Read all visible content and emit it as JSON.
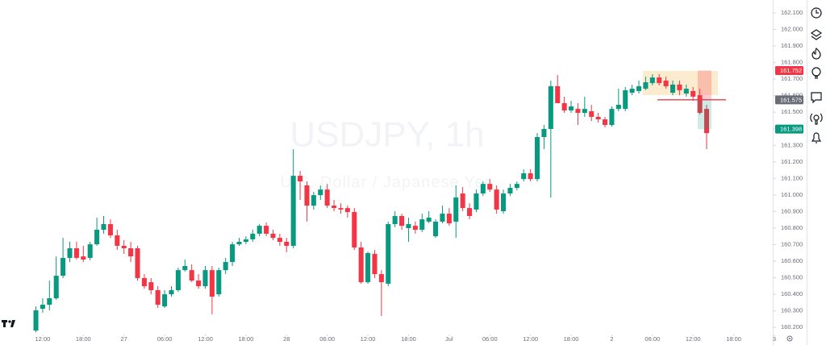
{
  "chart_data": {
    "type": "candlestick",
    "title": "USDJPY, 1h",
    "subtitle": "U.S. Dollar / Japanese Yen",
    "up_color": "#089981",
    "down_color": "#f23645",
    "x": [
      -1,
      0,
      1,
      2,
      3,
      4,
      5,
      6,
      7,
      8,
      9,
      10,
      11,
      12,
      13,
      14,
      15,
      16,
      17,
      18,
      19,
      20,
      21,
      22,
      23,
      24,
      25,
      26,
      27,
      28,
      29,
      30,
      31,
      32,
      33,
      34,
      35,
      36,
      37,
      38,
      39,
      40,
      41,
      42,
      43,
      44,
      45,
      46,
      47,
      48,
      49,
      50,
      51,
      52,
      53,
      54,
      55,
      56,
      57,
      58,
      59,
      60,
      61,
      62,
      63,
      64,
      65,
      66,
      67,
      68,
      69,
      70,
      71,
      72,
      73,
      74,
      75,
      76,
      77,
      78,
      79,
      80,
      81,
      82,
      83,
      84,
      85,
      86,
      87,
      88,
      89,
      90,
      91,
      92,
      93,
      94,
      95,
      96,
      97,
      98
    ],
    "open": [
      160.181,
      160.313,
      160.337,
      160.376,
      160.512,
      160.62,
      160.678,
      160.629,
      160.62,
      160.702,
      160.79,
      160.824,
      160.756,
      160.693,
      160.678,
      160.678,
      160.498,
      160.473,
      160.425,
      160.327,
      160.4,
      160.425,
      160.546,
      160.546,
      160.483,
      160.449,
      160.546,
      160.4,
      160.546,
      160.595,
      160.702,
      160.717,
      160.732,
      160.766,
      160.814,
      160.766,
      160.741,
      160.717,
      160.693,
      161.116,
      161.058,
      160.936,
      160.999,
      161.033,
      160.936,
      160.921,
      160.921,
      160.897,
      160.683,
      160.473,
      160.644,
      160.522,
      160.464,
      160.824,
      160.873,
      160.8,
      160.814,
      160.79,
      160.839,
      160.751,
      160.839,
      160.887,
      160.839,
      161.009,
      160.921,
      160.912,
      161.009,
      161.067,
      161.033,
      160.902,
      161.009,
      161.043,
      161.096,
      161.131,
      161.096,
      161.35,
      161.399,
      161.657,
      161.555,
      161.511,
      161.52,
      161.496,
      161.506,
      161.472,
      161.457,
      161.423,
      161.52,
      161.52,
      161.618,
      161.628,
      161.642,
      161.676,
      161.71,
      161.691,
      161.618,
      161.667,
      161.613,
      161.628,
      161.603,
      161.52
    ],
    "high": [
      160.327,
      160.376,
      160.483,
      160.629,
      160.741,
      160.717,
      160.717,
      160.693,
      160.717,
      160.863,
      160.873,
      160.853,
      160.79,
      160.727,
      160.717,
      160.693,
      160.522,
      160.498,
      160.449,
      160.425,
      160.449,
      160.561,
      160.61,
      160.58,
      160.522,
      160.571,
      160.571,
      160.561,
      160.62,
      160.717,
      160.741,
      160.751,
      160.79,
      160.824,
      160.834,
      160.79,
      160.766,
      160.741,
      161.277,
      161.145,
      161.082,
      161.019,
      161.058,
      161.067,
      160.97,
      160.95,
      160.936,
      160.921,
      160.717,
      160.658,
      160.668,
      160.546,
      160.839,
      160.902,
      160.887,
      160.863,
      160.839,
      160.887,
      160.902,
      160.853,
      160.936,
      160.921,
      161.058,
      161.048,
      160.95,
      161.033,
      161.082,
      161.096,
      161.058,
      161.033,
      161.067,
      161.082,
      161.155,
      161.155,
      161.374,
      161.423,
      161.691,
      161.725,
      161.594,
      161.569,
      161.555,
      161.594,
      161.545,
      161.496,
      161.472,
      161.535,
      161.642,
      161.652,
      161.667,
      161.691,
      161.715,
      161.73,
      161.73,
      161.715,
      161.691,
      161.691,
      161.667,
      161.652,
      161.642,
      161.545
    ],
    "low": [
      160.171,
      160.289,
      160.303,
      160.366,
      160.498,
      160.595,
      160.61,
      160.595,
      160.605,
      160.693,
      160.766,
      160.741,
      160.668,
      160.644,
      160.595,
      160.483,
      160.434,
      160.4,
      160.317,
      160.317,
      160.386,
      160.415,
      160.537,
      160.473,
      160.434,
      160.434,
      160.279,
      160.386,
      160.522,
      160.571,
      160.693,
      160.702,
      160.717,
      160.751,
      160.751,
      160.727,
      160.693,
      160.654,
      160.678,
      160.97,
      160.839,
      160.912,
      160.97,
      160.921,
      160.902,
      160.887,
      160.863,
      160.668,
      160.464,
      160.464,
      160.498,
      160.269,
      160.449,
      160.805,
      160.79,
      160.717,
      160.766,
      160.775,
      160.829,
      160.741,
      160.829,
      160.814,
      160.741,
      160.902,
      160.853,
      160.897,
      160.994,
      161.019,
      160.887,
      160.887,
      160.994,
      161.028,
      161.082,
      161.082,
      161.082,
      161.277,
      160.985,
      161.555,
      161.496,
      161.496,
      161.423,
      161.472,
      161.447,
      161.438,
      161.408,
      161.413,
      161.506,
      161.506,
      161.603,
      161.613,
      161.633,
      161.662,
      161.662,
      161.642,
      161.603,
      161.603,
      161.594,
      161.569,
      161.486,
      161.277
    ],
    "close": [
      160.303,
      160.337,
      160.376,
      160.512,
      160.62,
      160.678,
      160.62,
      160.61,
      160.702,
      160.79,
      160.824,
      160.756,
      160.693,
      160.678,
      160.629,
      160.498,
      160.449,
      160.425,
      160.337,
      160.4,
      160.425,
      160.546,
      160.571,
      160.483,
      160.449,
      160.546,
      160.386,
      160.546,
      160.595,
      160.702,
      160.717,
      160.732,
      160.766,
      160.814,
      160.766,
      160.741,
      160.717,
      160.693,
      161.116,
      161.082,
      160.936,
      160.999,
      161.033,
      160.936,
      160.921,
      160.912,
      160.897,
      160.683,
      160.473,
      160.649,
      160.522,
      160.473,
      160.824,
      160.873,
      160.814,
      160.824,
      160.79,
      160.853,
      160.863,
      160.839,
      160.887,
      160.829,
      160.985,
      160.921,
      160.873,
      161.009,
      161.067,
      161.033,
      160.912,
      161.009,
      161.043,
      161.067,
      161.131,
      161.096,
      161.35,
      161.399,
      161.657,
      161.555,
      161.511,
      161.535,
      161.496,
      161.52,
      161.472,
      161.457,
      161.423,
      161.52,
      161.545,
      161.633,
      161.642,
      161.657,
      161.681,
      161.71,
      161.676,
      161.657,
      161.667,
      161.633,
      161.642,
      161.594,
      161.496,
      161.374
    ],
    "xlim": [
      -6.3,
      108
    ],
    "xticks": [
      {
        "value": 0,
        "label": "12:00"
      },
      {
        "value": 6,
        "label": "18:00"
      },
      {
        "value": 12,
        "label": "27"
      },
      {
        "value": 18,
        "label": "06:00"
      },
      {
        "value": 24,
        "label": "12:00"
      },
      {
        "value": 30,
        "label": "18:00"
      },
      {
        "value": 36,
        "label": "28"
      },
      {
        "value": 42,
        "label": "06:00"
      },
      {
        "value": 48,
        "label": "12:00"
      },
      {
        "value": 54,
        "label": "18:00"
      },
      {
        "value": 60,
        "label": "Jul"
      },
      {
        "value": 66,
        "label": "06:00"
      },
      {
        "value": 72,
        "label": "12:00"
      },
      {
        "value": 78,
        "label": "18:00"
      },
      {
        "value": 84,
        "label": "2"
      },
      {
        "value": 90,
        "label": "06:00"
      },
      {
        "value": 96,
        "label": "12:00"
      },
      {
        "value": 102,
        "label": "18:00"
      },
      {
        "value": 108,
        "label": "3"
      }
    ],
    "ylim": [
      160.157,
      162.178
    ],
    "yticks": [
      {
        "value": 160.2,
        "label": "160.200"
      },
      {
        "value": 160.3,
        "label": "160.300"
      },
      {
        "value": 160.4,
        "label": "160.400"
      },
      {
        "value": 160.5,
        "label": "160.500"
      },
      {
        "value": 160.6,
        "label": "160.600"
      },
      {
        "value": 160.7,
        "label": "160.700"
      },
      {
        "value": 160.8,
        "label": "160.800"
      },
      {
        "value": 160.9,
        "label": "160.900"
      },
      {
        "value": 161.0,
        "label": "161.000"
      },
      {
        "value": 161.1,
        "label": "161.100"
      },
      {
        "value": 161.2,
        "label": "161.200"
      },
      {
        "value": 161.3,
        "label": "161.300"
      },
      {
        "value": 161.4,
        "label": "161.400"
      },
      {
        "value": 161.5,
        "label": "161.500"
      },
      {
        "value": 161.6,
        "label": "161.600"
      },
      {
        "value": 161.7,
        "label": "161.700"
      },
      {
        "value": 161.8,
        "label": "161.800"
      },
      {
        "value": 161.9,
        "label": "161.900"
      },
      {
        "value": 162.0,
        "label": "162.000"
      },
      {
        "value": 162.1,
        "label": "162.100"
      }
    ],
    "position": {
      "stop": 161.752,
      "entry": 161.575,
      "target": 161.398
    }
  }
}
